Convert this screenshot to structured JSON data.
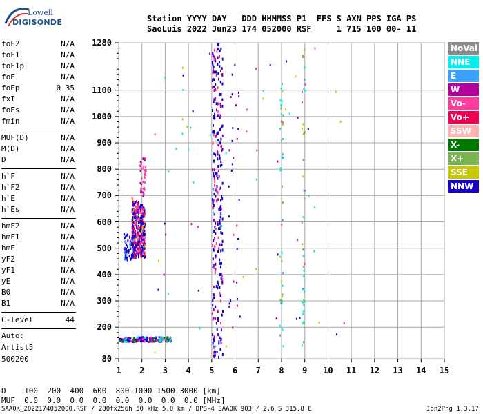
{
  "logo": {
    "line1": "Lowell",
    "line2": "DIGISONDE"
  },
  "header": {
    "labels": [
      "Station",
      "YYYY",
      "DAY",
      "DDD",
      "HHMMSS",
      "P1",
      "FFS",
      "S",
      "AXN",
      "PPS",
      "IGA",
      "PS"
    ],
    "values": [
      "SaoLuis",
      "2022",
      "Jun23",
      "174",
      "052000",
      "RSF",
      "1",
      "715",
      "100",
      "00-",
      "11"
    ]
  },
  "params": {
    "group1": [
      {
        "name": "foF2",
        "value": "N/A"
      },
      {
        "name": "foF1",
        "value": "N/A"
      },
      {
        "name": "foF1p",
        "value": "N/A"
      },
      {
        "name": "foE",
        "value": "N/A"
      },
      {
        "name": "foEp",
        "value": "0.35"
      },
      {
        "name": "fxI",
        "value": "N/A"
      },
      {
        "name": "foEs",
        "value": "N/A"
      },
      {
        "name": "fmin",
        "value": "N/A"
      }
    ],
    "group2": [
      {
        "name": "MUF(D)",
        "value": "N/A"
      },
      {
        "name": "M(D)",
        "value": "N/A"
      },
      {
        "name": "D",
        "value": "N/A"
      }
    ],
    "group3": [
      {
        "name": "h`F",
        "value": "N/A"
      },
      {
        "name": "h`F2",
        "value": "N/A"
      },
      {
        "name": "h`E",
        "value": "N/A"
      },
      {
        "name": "h`Es",
        "value": "N/A"
      }
    ],
    "group4": [
      {
        "name": "hmF2",
        "value": "N/A"
      },
      {
        "name": "hmF1",
        "value": "N/A"
      },
      {
        "name": "hmE",
        "value": "N/A"
      },
      {
        "name": "yF2",
        "value": "N/A"
      },
      {
        "name": "yF1",
        "value": "N/A"
      },
      {
        "name": "yE",
        "value": "N/A"
      },
      {
        "name": "B0",
        "value": "N/A"
      },
      {
        "name": "B1",
        "value": "N/A"
      }
    ],
    "clevel": {
      "name": "C-level",
      "value": "44"
    }
  },
  "autoscaling": {
    "line1": "Auto:",
    "line2": "Artist5",
    "line3": "500200"
  },
  "legend": [
    {
      "label": "NoVal",
      "color": "#8c8c8c"
    },
    {
      "label": "NNE",
      "color": "#00f0f0"
    },
    {
      "label": "E",
      "color": "#3ca0ff"
    },
    {
      "label": "W",
      "color": "#b4009c"
    },
    {
      "label": "Vo-",
      "color": "#ff3ca0"
    },
    {
      "label": "Vo+",
      "color": "#f00050"
    },
    {
      "label": "SSW",
      "color": "#ffb4b4"
    },
    {
      "label": "X-",
      "color": "#007800"
    },
    {
      "label": "X+",
      "color": "#78b450"
    },
    {
      "label": "SSE",
      "color": "#c8c800"
    },
    {
      "label": "NNW",
      "color": "#1400c8"
    }
  ],
  "bottom": {
    "d_label": "D",
    "d_values": [
      "100",
      "200",
      "400",
      "600",
      "800",
      "1000",
      "1500",
      "3000",
      "[km]"
    ],
    "muf_label": "MUF",
    "muf_values": [
      "0.0",
      "0.0",
      "0.0",
      "0.0",
      "0.0",
      "0.0",
      "0.0",
      "0.0",
      "[MHz]"
    ],
    "footer_left": "SAA0K_2022174052000.RSF / 280fx256h 50 kHz 5.0 km / DPS-4 SAA0K 903 / 2.6 S 315.8 E",
    "footer_right": "Ion2Png 1.3.17"
  },
  "chart_data": {
    "type": "scatter",
    "xlim": [
      1,
      15
    ],
    "ylim": [
      80,
      1280
    ],
    "xticks": [
      "1",
      "2",
      "3",
      "4",
      "5",
      "6",
      "7",
      "8",
      "9",
      "10",
      "11",
      "12",
      "13",
      "14",
      "15"
    ],
    "yticks": [
      "80",
      "200",
      "300",
      "400",
      "500",
      "600",
      "700",
      "800",
      "900",
      "1000",
      "1100",
      "1280"
    ],
    "grid": true,
    "legend_position": "right"
  }
}
